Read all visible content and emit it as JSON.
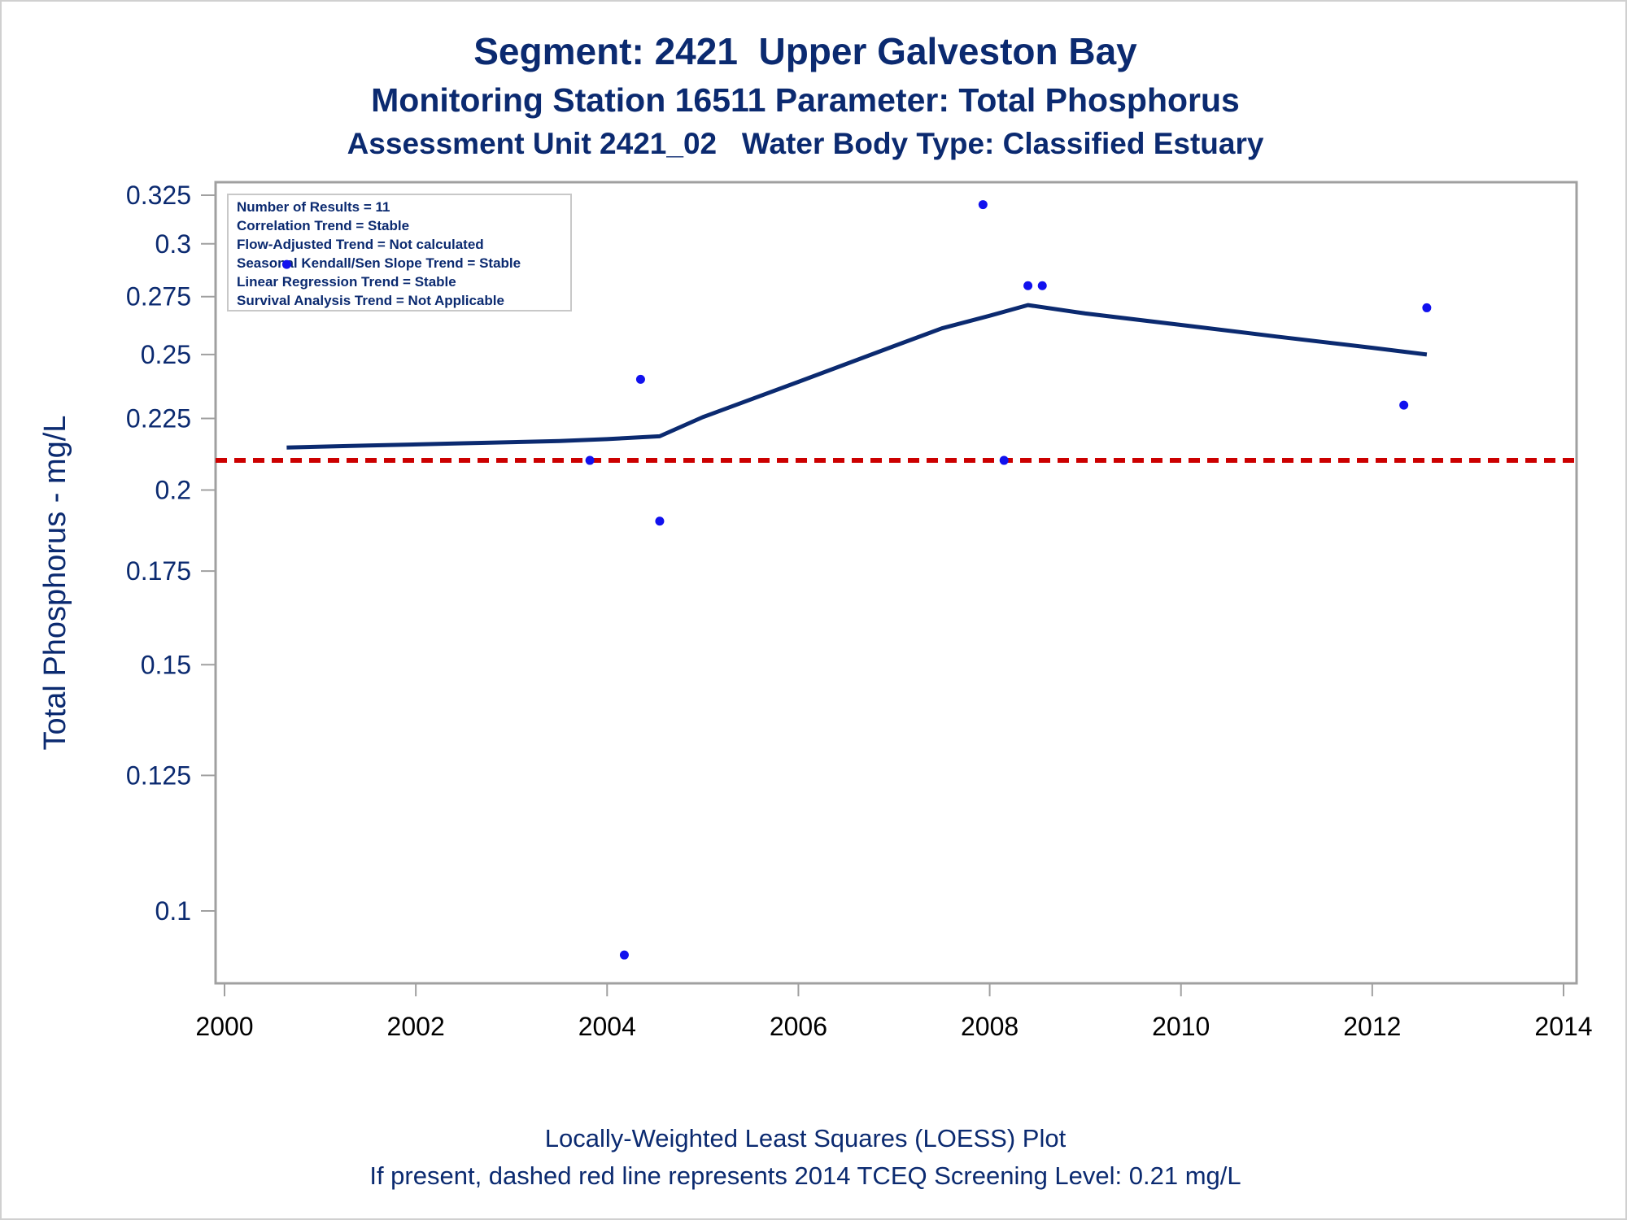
{
  "chart_data": {
    "type": "scatter",
    "title": "Segment: 2421  Upper Galveston Bay",
    "subtitle_1": "Monitoring Station 16511 Parameter: Total Phosphorus",
    "subtitle_2": "Assessment Unit 2421_02   Water Body Type: Classified Estuary",
    "xlabel": "",
    "ylabel": "Total Phosphorus - mg/L",
    "x_ticks": [
      "2000",
      "2002",
      "2004",
      "2006",
      "2008",
      "2010",
      "2012",
      "2014"
    ],
    "y_ticks": [
      "0.1",
      "0.125",
      "0.15",
      "0.175",
      "0.2",
      "0.225",
      "0.25",
      "0.275",
      "0.3",
      "0.325"
    ],
    "xlim": [
      2000,
      2014
    ],
    "ylim": [
      0.09,
      0.325
    ],
    "y_scale": "log",
    "grid": false,
    "stats_box": [
      "Number of Results = 11",
      "Correlation Trend = Stable",
      "Flow-Adjusted Trend = Not calculated",
      "Seasonal Kendall/Sen Slope Trend = Stable",
      "Linear Regression Trend = Stable",
      "Survival Analysis Trend = Not Applicable"
    ],
    "points": [
      {
        "x": 2000.65,
        "y": 0.29
      },
      {
        "x": 2003.82,
        "y": 0.21
      },
      {
        "x": 2004.18,
        "y": 0.093
      },
      {
        "x": 2004.35,
        "y": 0.24
      },
      {
        "x": 2004.55,
        "y": 0.19
      },
      {
        "x": 2007.93,
        "y": 0.32
      },
      {
        "x": 2008.15,
        "y": 0.21
      },
      {
        "x": 2008.4,
        "y": 0.28
      },
      {
        "x": 2008.55,
        "y": 0.28
      },
      {
        "x": 2012.33,
        "y": 0.23
      },
      {
        "x": 2012.57,
        "y": 0.27
      }
    ],
    "loess": [
      {
        "x": 2000.65,
        "y": 0.2145
      },
      {
        "x": 2001.5,
        "y": 0.2152
      },
      {
        "x": 2002.5,
        "y": 0.216
      },
      {
        "x": 2003.5,
        "y": 0.2168
      },
      {
        "x": 2004.0,
        "y": 0.2175
      },
      {
        "x": 2004.55,
        "y": 0.2185
      },
      {
        "x": 2005.0,
        "y": 0.2255
      },
      {
        "x": 2006.0,
        "y": 0.239
      },
      {
        "x": 2007.0,
        "y": 0.2535
      },
      {
        "x": 2007.5,
        "y": 0.261
      },
      {
        "x": 2008.0,
        "y": 0.2665
      },
      {
        "x": 2008.4,
        "y": 0.2712
      },
      {
        "x": 2009.0,
        "y": 0.2675
      },
      {
        "x": 2010.0,
        "y": 0.2625
      },
      {
        "x": 2011.0,
        "y": 0.2575
      },
      {
        "x": 2012.0,
        "y": 0.2528
      },
      {
        "x": 2012.57,
        "y": 0.25
      }
    ],
    "screening_level": 0.21,
    "colors": {
      "points": "#1111ee",
      "loess": "#0b2a70",
      "screening": "#cc0000",
      "text": "#0b2a70"
    },
    "footnote_1": "Locally-Weighted Least Squares (LOESS) Plot",
    "footnote_2": "If present, dashed red line represents 2014 TCEQ Screening Level: 0.21 mg/L"
  }
}
